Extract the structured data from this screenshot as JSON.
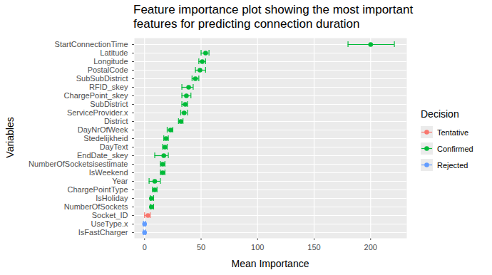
{
  "chart_data": {
    "type": "pointrange",
    "orientation": "horizontal",
    "title": "Feature importance plot showing the most important\nfeatures for predicting connection duration",
    "x_label": "Mean Importance",
    "y_label": "Variables",
    "categories": [
      "StartConnectionTime",
      "Latitude",
      "Longitude",
      "PostalCode",
      "SubSubDistrict",
      "RFID_skey",
      "ChargePoint_skey",
      "SubDistrict",
      "ServiceProvider.x",
      "District",
      "DayNrOfWeek",
      "Stedelijkheid",
      "DayText",
      "EndDate_skey",
      "NumberOfSocketsisestimate",
      "IsWeekend",
      "Year",
      "ChargePointType",
      "IsHoliday",
      "NumberOfSockets",
      "Socket_ID",
      "UseType.x",
      "IsFastCharger"
    ],
    "values": [
      200,
      54,
      51,
      49,
      45,
      39,
      37,
      36,
      35,
      32,
      23,
      19,
      18,
      17,
      16,
      16,
      9,
      9,
      6,
      6,
      3,
      0,
      0
    ],
    "lower": [
      180,
      50,
      48,
      45,
      42,
      33,
      33,
      33,
      32,
      30,
      20,
      17,
      16,
      9,
      14,
      14,
      4,
      7,
      5,
      5,
      0,
      -1,
      -1
    ],
    "upper": [
      221,
      57,
      54,
      54,
      48,
      43,
      41,
      38,
      38,
      34,
      25,
      21,
      20,
      21,
      18,
      18,
      14,
      11,
      8,
      8,
      5,
      1,
      1
    ],
    "decision": [
      "Confirmed",
      "Confirmed",
      "Confirmed",
      "Confirmed",
      "Confirmed",
      "Confirmed",
      "Confirmed",
      "Confirmed",
      "Confirmed",
      "Confirmed",
      "Confirmed",
      "Confirmed",
      "Confirmed",
      "Confirmed",
      "Confirmed",
      "Confirmed",
      "Confirmed",
      "Confirmed",
      "Confirmed",
      "Confirmed",
      "Tentative",
      "Rejected",
      "Rejected"
    ],
    "legend_title": "Decision",
    "series": [
      {
        "name": "Tentative",
        "color": "#F8766D"
      },
      {
        "name": "Confirmed",
        "color": "#00BA38"
      },
      {
        "name": "Rejected",
        "color": "#619CFF"
      }
    ],
    "legend": "right",
    "xlim": [
      -9,
      232
    ],
    "xticks": [
      0,
      50,
      100,
      150,
      200
    ],
    "grid": true
  }
}
